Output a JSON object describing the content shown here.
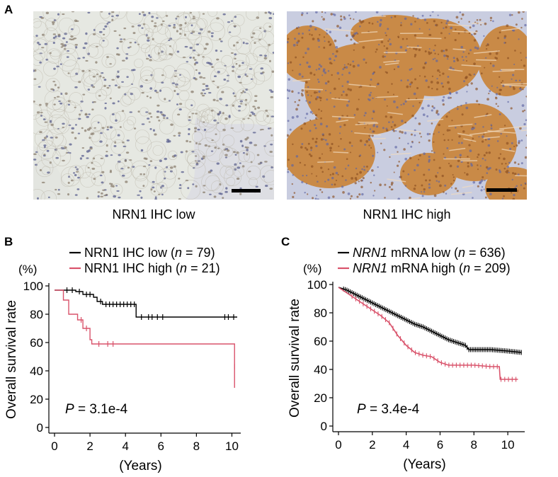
{
  "panels": {
    "a": {
      "letter": "A",
      "images": [
        {
          "caption": "NRN1 IHC low",
          "stain": "low"
        },
        {
          "caption": "NRN1 IHC high",
          "stain": "high"
        }
      ]
    },
    "b": {
      "letter": "B"
    },
    "c": {
      "letter": "C"
    }
  },
  "colors": {
    "black": "#000000",
    "red": "#d9536b",
    "ihc_low_bg": "#e6e8e2",
    "ihc_high_bg": "#c98a47",
    "stroma": "#c9cde0"
  },
  "chart_data": [
    {
      "type": "line",
      "panel": "B",
      "ylabel": "Overall survival rate",
      "yunit": "(%)",
      "xlabel": "(Years)",
      "xlim": [
        0,
        10.5
      ],
      "ylim": [
        0,
        100
      ],
      "xticks": [
        0,
        2,
        4,
        6,
        8,
        10
      ],
      "yticks": [
        0,
        20,
        40,
        60,
        80,
        100
      ],
      "annotation": {
        "p_label": "P",
        "p_value": "= 3.1e-4"
      },
      "legend": [
        {
          "prefix": "NRN1 IHC low",
          "n_label": "n",
          "n_value": "= 79",
          "color": "#000000"
        },
        {
          "prefix": "NRN1 IHC high",
          "n_label": "n",
          "n_value": "= 21",
          "color": "#d9536b"
        }
      ],
      "series": [
        {
          "name": "NRN1 IHC low",
          "color": "#000000",
          "steps": [
            [
              0,
              97
            ],
            [
              1.2,
              96
            ],
            [
              1.6,
              94
            ],
            [
              2.2,
              92
            ],
            [
              2.4,
              89
            ],
            [
              2.7,
              87
            ],
            [
              4.6,
              78
            ],
            [
              10.3,
              78
            ]
          ],
          "censor": [
            [
              0.7,
              97
            ],
            [
              1.0,
              97
            ],
            [
              1.4,
              96
            ],
            [
              1.8,
              94
            ],
            [
              2.0,
              94
            ],
            [
              2.6,
              89
            ],
            [
              2.9,
              87
            ],
            [
              3.1,
              87
            ],
            [
              3.3,
              87
            ],
            [
              3.5,
              87
            ],
            [
              3.7,
              87
            ],
            [
              3.9,
              87
            ],
            [
              4.1,
              87
            ],
            [
              4.3,
              87
            ],
            [
              4.5,
              87
            ],
            [
              4.9,
              78
            ],
            [
              5.3,
              78
            ],
            [
              5.5,
              78
            ],
            [
              5.8,
              78
            ],
            [
              6.1,
              78
            ],
            [
              9.6,
              78
            ],
            [
              9.8,
              78
            ],
            [
              10.1,
              78
            ]
          ]
        },
        {
          "name": "NRN1 IHC high",
          "color": "#d9536b",
          "steps": [
            [
              0,
              97
            ],
            [
              0.5,
              90
            ],
            [
              0.8,
              80
            ],
            [
              1.3,
              76
            ],
            [
              1.6,
              70
            ],
            [
              2.0,
              62
            ],
            [
              2.1,
              59
            ],
            [
              10.15,
              43
            ],
            [
              10.15,
              28
            ]
          ],
          "censor": [
            [
              1.5,
              76
            ],
            [
              1.8,
              70
            ],
            [
              2.5,
              59
            ],
            [
              3.0,
              59
            ],
            [
              3.3,
              59
            ],
            [
              10.15,
              43
            ]
          ]
        }
      ]
    },
    {
      "type": "line",
      "panel": "C",
      "ylabel": "Overall survival rate",
      "yunit": "(%)",
      "xlabel": "(Years)",
      "xlim": [
        0,
        11
      ],
      "ylim": [
        0,
        100
      ],
      "xticks": [
        0,
        2,
        4,
        6,
        8,
        10
      ],
      "yticks": [
        0,
        20,
        40,
        60,
        80,
        100
      ],
      "annotation": {
        "p_label": "P",
        "p_value": "= 3.4e-4"
      },
      "legend": [
        {
          "prefix_italic": "NRN1",
          "prefix": " mRNA low",
          "n_label": "n",
          "n_value": "= 636",
          "color": "#000000"
        },
        {
          "prefix_italic": "NRN1",
          "prefix": " mRNA high",
          "n_label": "n",
          "n_value": "= 209",
          "color": "#d9536b"
        }
      ],
      "series": [
        {
          "name": "NRN1 mRNA low",
          "color": "#000000",
          "curve": [
            [
              0,
              98
            ],
            [
              0.5,
              96
            ],
            [
              1,
              93
            ],
            [
              1.5,
              90
            ],
            [
              2,
              87
            ],
            [
              2.5,
              84
            ],
            [
              3,
              81
            ],
            [
              3.5,
              78
            ],
            [
              4,
              75
            ],
            [
              4.5,
              72
            ],
            [
              5,
              70
            ],
            [
              5.5,
              67
            ],
            [
              6,
              64
            ],
            [
              6.5,
              61
            ],
            [
              7,
              59
            ],
            [
              7.5,
              57
            ],
            [
              7.7,
              54
            ],
            [
              9,
              54
            ],
            [
              10,
              53
            ],
            [
              10.8,
              52
            ]
          ],
          "censor_from": 0.3,
          "censor_to": 10.8,
          "censor_step": 0.1
        },
        {
          "name": "NRN1 mRNA high",
          "color": "#d9536b",
          "curve": [
            [
              0,
              98
            ],
            [
              0.5,
              94
            ],
            [
              1,
              90
            ],
            [
              1.5,
              86
            ],
            [
              2,
              82
            ],
            [
              2.5,
              78
            ],
            [
              3,
              73
            ],
            [
              3.5,
              64
            ],
            [
              4,
              57
            ],
            [
              4.5,
              52
            ],
            [
              5,
              50
            ],
            [
              5.5,
              49
            ],
            [
              6,
              45
            ],
            [
              6.5,
              43
            ],
            [
              7,
              43
            ],
            [
              8,
              43
            ],
            [
              9,
              42
            ],
            [
              9.5,
              42
            ],
            [
              9.55,
              33
            ],
            [
              10.6,
              33
            ]
          ],
          "censor_from": 0.8,
          "censor_to": 10.6,
          "censor_step": 0.22
        }
      ]
    }
  ]
}
